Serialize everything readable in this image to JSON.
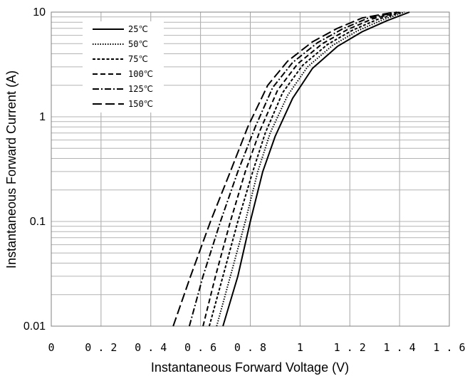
{
  "chart_data": {
    "type": "line",
    "title": "",
    "xlabel": "Instantaneous Forward Voltage (V)",
    "ylabel": "Instantaneous Forward Current (A)",
    "xlim": [
      0,
      1.6
    ],
    "ylim": [
      0.01,
      10
    ],
    "yscale": "log",
    "grid": true,
    "legend_position": "top-left",
    "x_tick_labels": [
      "0",
      "0.2",
      "0.4",
      "0.6",
      "0.8",
      "1",
      "1.2",
      "1.4",
      "1.6"
    ],
    "y_tick_labels": [
      "0.01",
      "0.1",
      "1",
      "10"
    ],
    "series": [
      {
        "name": "25℃",
        "dash": "solid",
        "x": [
          0.69,
          0.75,
          0.8,
          0.85,
          0.9,
          0.97,
          1.05,
          1.15,
          1.25,
          1.35,
          1.44
        ],
        "y": [
          0.01,
          0.03,
          0.1,
          0.3,
          0.65,
          1.5,
          2.9,
          4.7,
          6.5,
          8.3,
          10
        ]
      },
      {
        "name": "50℃",
        "dash": "dotted",
        "x": [
          0.665,
          0.72,
          0.78,
          0.83,
          0.88,
          0.95,
          1.03,
          1.13,
          1.23,
          1.33,
          1.42
        ],
        "y": [
          0.01,
          0.03,
          0.1,
          0.3,
          0.7,
          1.6,
          3.0,
          4.8,
          6.6,
          8.4,
          10
        ]
      },
      {
        "name": "75℃",
        "dash": "short-dash",
        "x": [
          0.635,
          0.69,
          0.75,
          0.81,
          0.86,
          0.93,
          1.01,
          1.11,
          1.21,
          1.31,
          1.41
        ],
        "y": [
          0.01,
          0.03,
          0.1,
          0.3,
          0.7,
          1.7,
          3.1,
          4.9,
          6.7,
          8.5,
          10
        ]
      },
      {
        "name": "100℃",
        "dash": "dash",
        "x": [
          0.61,
          0.66,
          0.72,
          0.78,
          0.84,
          0.91,
          0.99,
          1.09,
          1.19,
          1.29,
          1.4
        ],
        "y": [
          0.01,
          0.03,
          0.1,
          0.3,
          0.75,
          1.8,
          3.2,
          5.0,
          6.8,
          8.6,
          10
        ]
      },
      {
        "name": "125℃",
        "dash": "dash-dot",
        "x": [
          0.555,
          0.61,
          0.68,
          0.75,
          0.82,
          0.89,
          0.97,
          1.07,
          1.17,
          1.27,
          1.39
        ],
        "y": [
          0.01,
          0.03,
          0.1,
          0.3,
          0.8,
          1.9,
          3.3,
          5.1,
          6.9,
          8.7,
          10
        ]
      },
      {
        "name": "150℃",
        "dash": "long-dash",
        "x": [
          0.49,
          0.56,
          0.64,
          0.72,
          0.79,
          0.87,
          0.95,
          1.05,
          1.15,
          1.25,
          1.38
        ],
        "y": [
          0.01,
          0.03,
          0.1,
          0.3,
          0.8,
          2.0,
          3.4,
          5.2,
          7.0,
          8.8,
          10
        ]
      }
    ]
  }
}
